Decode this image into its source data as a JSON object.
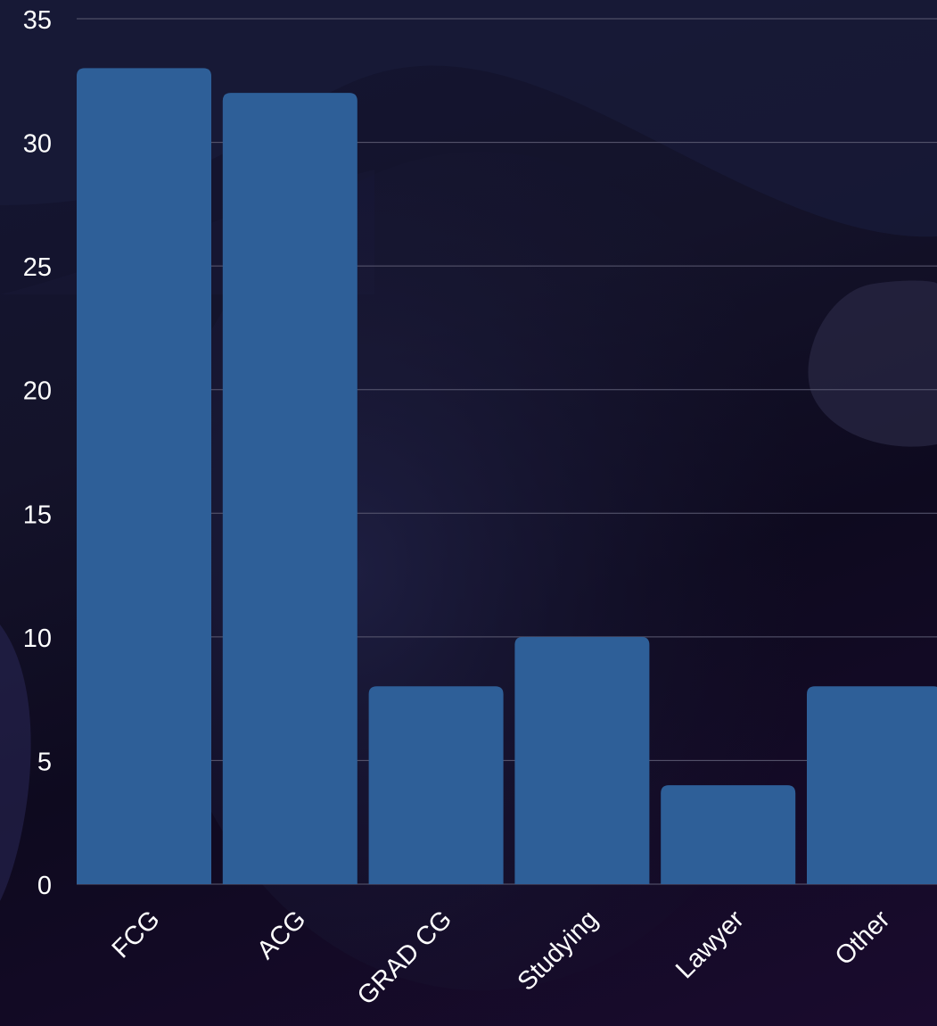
{
  "chart_data": {
    "type": "bar",
    "categories": [
      "FCG",
      "ACG",
      "GRAD CG",
      "Studying",
      "Lawyer",
      "Other"
    ],
    "values": [
      33,
      32,
      8,
      10,
      4,
      8
    ],
    "title": "",
    "xlabel": "",
    "ylabel": "",
    "ylim": [
      0,
      35
    ],
    "yticks": [
      0,
      5,
      10,
      15,
      20,
      25,
      30,
      35
    ],
    "grid": true,
    "bar_color": "#2e5f98",
    "grid_color": "#5b5a72",
    "text_color": "#ffffff"
  }
}
